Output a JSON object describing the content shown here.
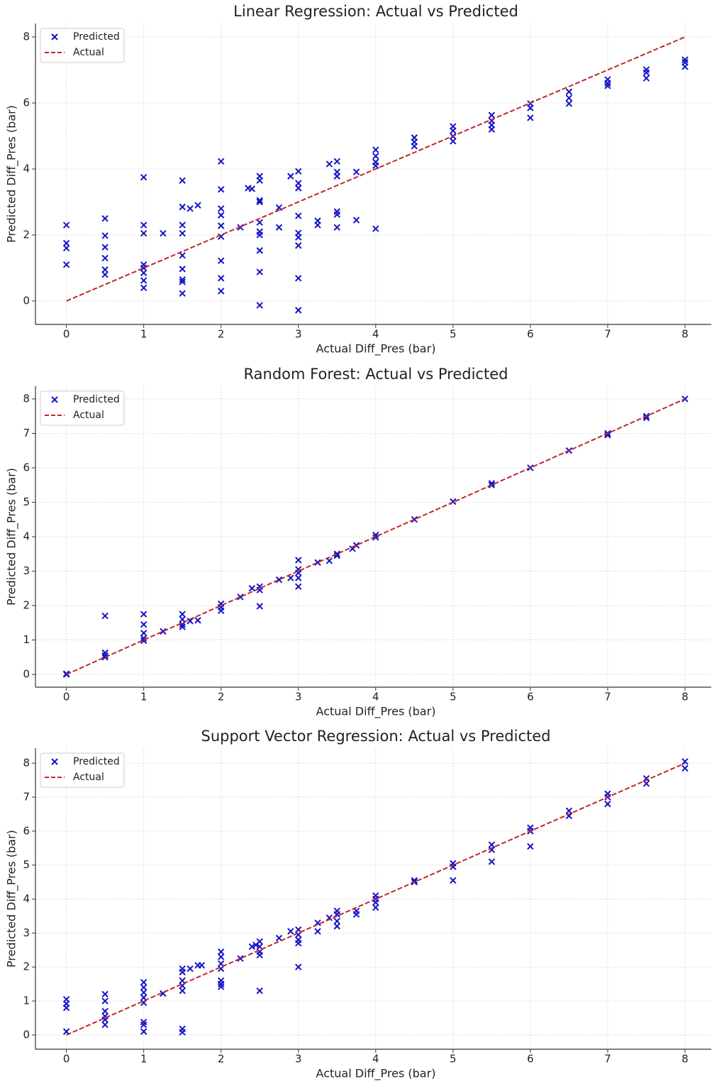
{
  "chart_data": [
    {
      "type": "scatter",
      "title": "Linear Regression: Actual vs Predicted",
      "xlabel": "Actual Diff_Pres (bar)",
      "ylabel": "Predicted Diff_Pres (bar)",
      "xlim": [
        -0.4,
        8.34
      ],
      "ylim": [
        -0.71,
        8.41
      ],
      "xticks": [
        0,
        1,
        2,
        3,
        4,
        5,
        6,
        7,
        8
      ],
      "yticks": [
        0,
        2,
        4,
        6,
        8
      ],
      "grid": true,
      "legend": "upper left",
      "series": [
        {
          "name": "Predicted",
          "color": "#1414c8",
          "marker": "x",
          "x": [
            0,
            0,
            0,
            0,
            0.5,
            0.5,
            0.5,
            0.5,
            0.5,
            0.5,
            1,
            1,
            1,
            1,
            1,
            1,
            1,
            1,
            1.25,
            1.5,
            1.5,
            1.5,
            1.5,
            1.5,
            1.5,
            1.5,
            1.5,
            1.5,
            1.6,
            1.7,
            2,
            2,
            2,
            2,
            2,
            2,
            2,
            2,
            2,
            2.25,
            2.35,
            2.4,
            2.5,
            2.5,
            2.5,
            2.5,
            2.5,
            2.5,
            2.5,
            2.5,
            2.5,
            2.5,
            2.75,
            2.75,
            2.9,
            3,
            3,
            3,
            3,
            3,
            3,
            3,
            3,
            3,
            3.25,
            3.25,
            3.4,
            3.5,
            3.5,
            3.5,
            3.5,
            3.5,
            3.5,
            3.75,
            3.75,
            4,
            4,
            4,
            4,
            4,
            4.5,
            4.5,
            4.5,
            5,
            5,
            5,
            5,
            5.5,
            5.5,
            5.5,
            5.5,
            6,
            6,
            6,
            6.5,
            6.5,
            6.5,
            7,
            7,
            7,
            7.5,
            7.5,
            7.5,
            8,
            8,
            8
          ],
          "y": [
            2.3,
            1.75,
            1.6,
            1.1,
            2.5,
            1.98,
            1.63,
            1.3,
            0.95,
            0.8,
            3.75,
            2.3,
            2.05,
            1.1,
            1.0,
            0.85,
            0.62,
            0.4,
            2.05,
            3.65,
            2.85,
            2.3,
            2.05,
            1.38,
            0.97,
            0.65,
            0.58,
            0.23,
            2.8,
            2.9,
            4.23,
            3.38,
            2.8,
            2.6,
            2.28,
            1.95,
            1.22,
            0.69,
            0.3,
            2.23,
            3.42,
            3.4,
            3.78,
            3.65,
            3.05,
            3.0,
            2.38,
            2.1,
            2.0,
            1.53,
            0.88,
            -0.13,
            2.83,
            2.23,
            3.78,
            3.93,
            3.57,
            3.42,
            2.58,
            2.06,
            1.93,
            1.68,
            0.69,
            -0.28,
            2.43,
            2.3,
            4.15,
            4.23,
            3.91,
            3.78,
            2.71,
            2.62,
            2.23,
            3.91,
            2.45,
            4.58,
            4.39,
            4.21,
            4.1,
            2.19,
            4.95,
            4.82,
            4.69,
            5.29,
            5.16,
            4.99,
            4.84,
            5.63,
            5.46,
            5.33,
            5.2,
            5.98,
            5.85,
            5.55,
            6.34,
            6.15,
            5.98,
            6.71,
            6.6,
            6.52,
            7.01,
            6.92,
            6.75,
            7.31,
            7.23,
            7.1
          ]
        },
        {
          "name": "Actual",
          "color": "#c0282d",
          "linestyle": "dashed",
          "x": [
            0,
            8
          ],
          "y": [
            0,
            8
          ]
        }
      ]
    },
    {
      "type": "scatter",
      "title": "Random Forest: Actual vs Predicted",
      "xlabel": "Actual Diff_Pres (bar)",
      "ylabel": "Predicted Diff_Pres (bar)",
      "xlim": [
        -0.4,
        8.34
      ],
      "ylim": [
        -0.37,
        8.37
      ],
      "xticks": [
        0,
        1,
        2,
        3,
        4,
        5,
        6,
        7,
        8
      ],
      "yticks": [
        0,
        1,
        2,
        3,
        4,
        5,
        6,
        7,
        8
      ],
      "grid": true,
      "legend": "upper left",
      "series": [
        {
          "name": "Predicted",
          "color": "#1414c8",
          "marker": "x",
          "x": [
            0,
            0,
            0.5,
            0.5,
            0.5,
            0.5,
            1,
            1,
            1,
            1,
            1,
            1.25,
            1.5,
            1.5,
            1.5,
            1.5,
            1.6,
            1.7,
            2,
            2,
            2,
            2.25,
            2.4,
            2.5,
            2.5,
            2.5,
            2.75,
            2.9,
            3,
            3,
            3,
            3,
            3,
            3.25,
            3.4,
            3.5,
            3.5,
            3.7,
            3.75,
            4,
            4,
            4.5,
            5,
            5.5,
            5.5,
            6,
            6.5,
            7,
            7,
            7.5,
            7.5,
            8
          ],
          "y": [
            0,
            0.02,
            1.7,
            0.63,
            0.55,
            0.5,
            1.75,
            1.45,
            1.2,
            1.05,
            0.98,
            1.25,
            1.75,
            1.6,
            1.45,
            1.38,
            1.55,
            1.57,
            2.05,
            1.95,
            1.85,
            2.25,
            2.5,
            2.55,
            2.45,
            1.98,
            2.75,
            2.8,
            3.32,
            3.05,
            2.95,
            2.8,
            2.55,
            3.25,
            3.3,
            3.5,
            3.45,
            3.65,
            3.75,
            4.05,
            3.98,
            4.5,
            5.02,
            5.55,
            5.5,
            6.0,
            6.5,
            7.0,
            6.95,
            7.5,
            7.45,
            8.0
          ]
        },
        {
          "name": "Actual",
          "color": "#c0282d",
          "linestyle": "dashed",
          "x": [
            0,
            8
          ],
          "y": [
            0,
            8
          ]
        }
      ]
    },
    {
      "type": "scatter",
      "title": "Support Vector Regression: Actual vs Predicted",
      "xlabel": "Actual Diff_Pres (bar)",
      "ylabel": "Predicted Diff_Pres (bar)",
      "xlim": [
        -0.4,
        8.34
      ],
      "ylim": [
        -0.42,
        8.44
      ],
      "xticks": [
        0,
        1,
        2,
        3,
        4,
        5,
        6,
        7,
        8
      ],
      "yticks": [
        0,
        1,
        2,
        3,
        4,
        5,
        6,
        7,
        8
      ],
      "grid": true,
      "legend": "upper left",
      "series": [
        {
          "name": "Predicted",
          "color": "#1414c8",
          "marker": "x",
          "x": [
            0,
            0,
            0,
            0,
            0.5,
            0.5,
            0.5,
            0.5,
            0.5,
            0.5,
            1,
            1,
            1,
            1,
            1,
            1,
            1,
            1,
            1.25,
            1.5,
            1.5,
            1.5,
            1.5,
            1.5,
            1.5,
            1.5,
            1.6,
            1.7,
            1.75,
            2,
            2,
            2,
            2,
            2,
            2,
            2,
            2.25,
            2.4,
            2.45,
            2.5,
            2.5,
            2.5,
            2.5,
            2.5,
            2.75,
            2.9,
            3,
            3,
            3,
            3,
            3,
            3.25,
            3.25,
            3.4,
            3.5,
            3.5,
            3.5,
            3.5,
            3.75,
            3.75,
            4,
            4,
            4,
            4,
            4.5,
            4.5,
            5,
            5,
            5,
            5.5,
            5.5,
            5.5,
            6,
            6,
            6,
            6.5,
            6.5,
            7,
            7,
            7,
            7.5,
            7.5,
            8,
            8
          ],
          "y": [
            1.05,
            0.92,
            0.8,
            0.1,
            1.2,
            1.0,
            0.7,
            0.55,
            0.45,
            0.3,
            1.55,
            1.4,
            1.25,
            1.1,
            0.95,
            0.38,
            0.3,
            0.1,
            1.22,
            1.95,
            1.85,
            1.6,
            1.45,
            1.3,
            0.18,
            0.08,
            1.95,
            2.05,
            2.05,
            2.45,
            2.3,
            2.1,
            1.95,
            1.6,
            1.5,
            1.42,
            2.25,
            2.6,
            2.65,
            2.75,
            2.6,
            2.45,
            2.35,
            1.3,
            2.85,
            3.05,
            3.1,
            2.95,
            2.8,
            2.7,
            2.0,
            3.3,
            3.05,
            3.45,
            3.65,
            3.55,
            3.35,
            3.2,
            3.65,
            3.55,
            4.1,
            4.0,
            3.9,
            3.75,
            4.55,
            4.5,
            5.05,
            4.95,
            4.55,
            5.6,
            5.45,
            5.1,
            6.1,
            6.0,
            5.55,
            6.6,
            6.45,
            7.1,
            7.0,
            6.8,
            7.55,
            7.4,
            8.05,
            7.85
          ]
        },
        {
          "name": "Actual",
          "color": "#c0282d",
          "linestyle": "dashed",
          "x": [
            0,
            8
          ],
          "y": [
            0,
            8
          ]
        }
      ]
    }
  ]
}
